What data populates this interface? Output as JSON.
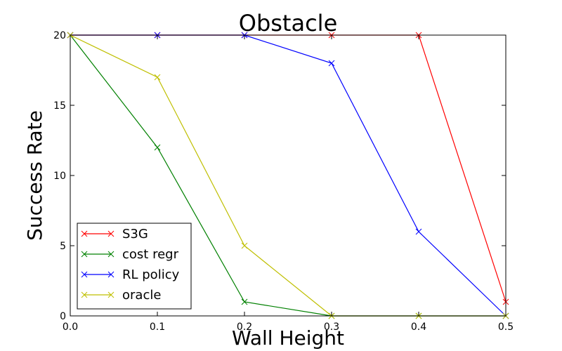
{
  "chart_data": {
    "type": "line",
    "title": "Obstacle",
    "xlabel": "Wall Height",
    "ylabel": "Success Rate",
    "xlim": [
      0.0,
      0.5
    ],
    "ylim": [
      0,
      20
    ],
    "x": [
      0.0,
      0.1,
      0.2,
      0.3,
      0.4,
      0.5
    ],
    "xticks": [
      "0.0",
      "0.1",
      "0.2",
      "0.3",
      "0.4",
      "0.5"
    ],
    "yticks_values": [
      0,
      5,
      10,
      15,
      20
    ],
    "yticks": [
      "0",
      "5",
      "10",
      "15",
      "20"
    ],
    "marker": "x",
    "grid": false,
    "legend_position": "lower-left",
    "series": [
      {
        "name": "S3G",
        "color": "#ff0000",
        "values": [
          20,
          20,
          20,
          20,
          20,
          1
        ]
      },
      {
        "name": "cost regr",
        "color": "#008000",
        "values": [
          20,
          12,
          1,
          0,
          0,
          0
        ]
      },
      {
        "name": "RL policy",
        "color": "#0000ff",
        "values": [
          20,
          20,
          20,
          18,
          6,
          0
        ]
      },
      {
        "name": "oracle",
        "color": "#bfbf00",
        "values": [
          20,
          17,
          5,
          0,
          0,
          0
        ]
      }
    ]
  }
}
